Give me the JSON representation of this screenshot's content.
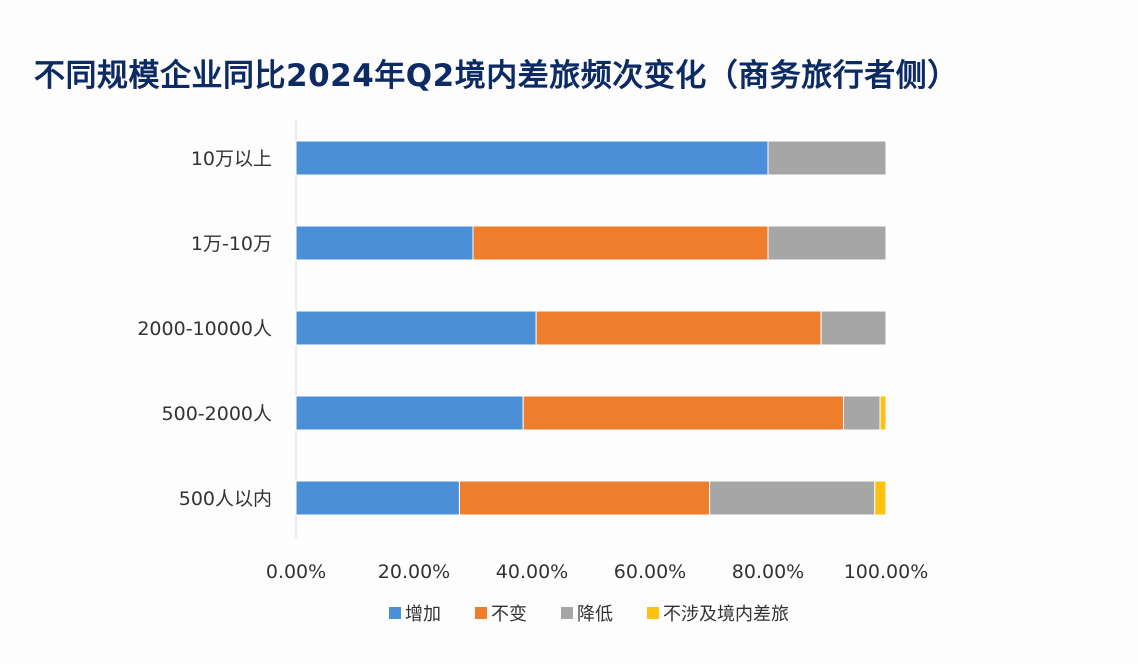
{
  "title": "不同规模企业同比2024年Q2境内差旅频次变化（商务旅行者侧）",
  "colors": {
    "increase": "#4a8fd8",
    "unchanged": "#ee7d2c",
    "decrease": "#a6a6a6",
    "not_applicable": "#fcc20f",
    "axis_text": "#333333",
    "axis_line": "#d9d9d9",
    "title": "#0c2a63"
  },
  "chart_data": {
    "type": "bar",
    "orientation": "horizontal",
    "stacked": true,
    "categories": [
      "10万以上",
      "1万-10万",
      "2000-10000人",
      "500-2000人",
      "500人以内"
    ],
    "series": [
      {
        "name": "增加",
        "color": "#4a8fd8",
        "values": [
          80.0,
          30.0,
          40.7,
          38.5,
          27.7
        ]
      },
      {
        "name": "不变",
        "color": "#ee7d2c",
        "values": [
          0.0,
          50.0,
          48.3,
          54.3,
          42.4
        ]
      },
      {
        "name": "降低",
        "color": "#a6a6a6",
        "values": [
          20.0,
          20.0,
          11.0,
          6.2,
          28.0
        ]
      },
      {
        "name": "不涉及境内差旅",
        "color": "#fcc20f",
        "values": [
          0.0,
          0.0,
          0.0,
          1.0,
          1.9
        ]
      }
    ],
    "x_ticks": [
      "0.00%",
      "20.00%",
      "40.00%",
      "60.00%",
      "80.00%",
      "100.00%"
    ],
    "xlim": [
      0,
      100
    ],
    "grid": false,
    "legend_position": "bottom"
  }
}
